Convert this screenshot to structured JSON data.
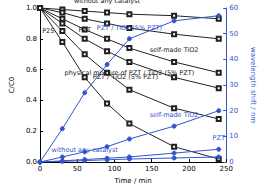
{
  "chart_data": {
    "type": "line",
    "x_label": "Time / min",
    "y_label": "C/C0",
    "y2_label": "wavelength shift / nm",
    "x": [
      0,
      30,
      60,
      90,
      120,
      180,
      240
    ],
    "xlim": [
      0,
      250
    ],
    "xticks": [
      0,
      50,
      100,
      150,
      200,
      250
    ],
    "ylim": [
      0,
      1.0
    ],
    "yticks": [
      {
        "value": 0,
        "label": "0.0"
      },
      {
        "value": 0.2,
        "label": "0.2"
      },
      {
        "value": 0.4,
        "label": "0.4"
      },
      {
        "value": 0.6,
        "label": "0.6"
      },
      {
        "value": 0.8,
        "label": "0.8"
      },
      {
        "value": 1.0,
        "label": "1.0"
      }
    ],
    "y2lim": [
      0,
      60
    ],
    "y2ticks": [
      0,
      10,
      20,
      30,
      40,
      50,
      60
    ],
    "grid": false,
    "series": [
      {
        "name": "without any catalyst",
        "color": "#222222",
        "marker": "square_open",
        "values": [
          1.0,
          0.99,
          0.98,
          0.97,
          0.96,
          0.95,
          0.93
        ]
      },
      {
        "name": "PZT",
        "color": "#222222",
        "marker": "square_open",
        "values": [
          1.0,
          0.97,
          0.93,
          0.9,
          0.87,
          0.83,
          0.8
        ]
      },
      {
        "name": "self-made TiO2",
        "color": "#222222",
        "marker": "square_open",
        "values": [
          1.0,
          0.93,
          0.86,
          0.8,
          0.74,
          0.65,
          0.58
        ]
      },
      {
        "name": "physical mixture of PZT / TiO2 (5% PZT)",
        "color": "#222222",
        "marker": "square_open",
        "values": [
          1.0,
          0.9,
          0.8,
          0.72,
          0.65,
          0.55,
          0.48
        ]
      },
      {
        "name": "P25",
        "color": "#222222",
        "marker": "square_open",
        "values": [
          1.0,
          0.85,
          0.7,
          0.58,
          0.47,
          0.35,
          0.28
        ]
      },
      {
        "name": "PZT / TiO2 (5% PZT)",
        "color": "#222222",
        "marker": "square_open",
        "values": [
          1.0,
          0.78,
          0.55,
          0.38,
          0.25,
          0.1,
          0.02
        ]
      },
      {
        "name": "PZT / TiO2 (5% PZT)",
        "color": "#3355cc",
        "marker": "circle",
        "axis": "y2",
        "values": [
          0,
          13,
          27,
          38,
          48,
          55,
          57
        ]
      },
      {
        "name": "self-made TiO2",
        "color": "#3355cc",
        "marker": "circle",
        "axis": "y2",
        "values": [
          0,
          2,
          4,
          6,
          9,
          14,
          20
        ]
      },
      {
        "name": "PZT",
        "color": "#3355cc",
        "marker": "circle",
        "axis": "y2",
        "values": [
          0,
          0.5,
          1,
          1.5,
          2,
          3.5,
          5
        ]
      },
      {
        "name": "without any catalyst",
        "color": "#3355cc",
        "marker": "circle",
        "axis": "y2",
        "values": [
          0,
          0.3,
          0.6,
          0.9,
          1.2,
          1.6,
          2
        ]
      }
    ]
  }
}
